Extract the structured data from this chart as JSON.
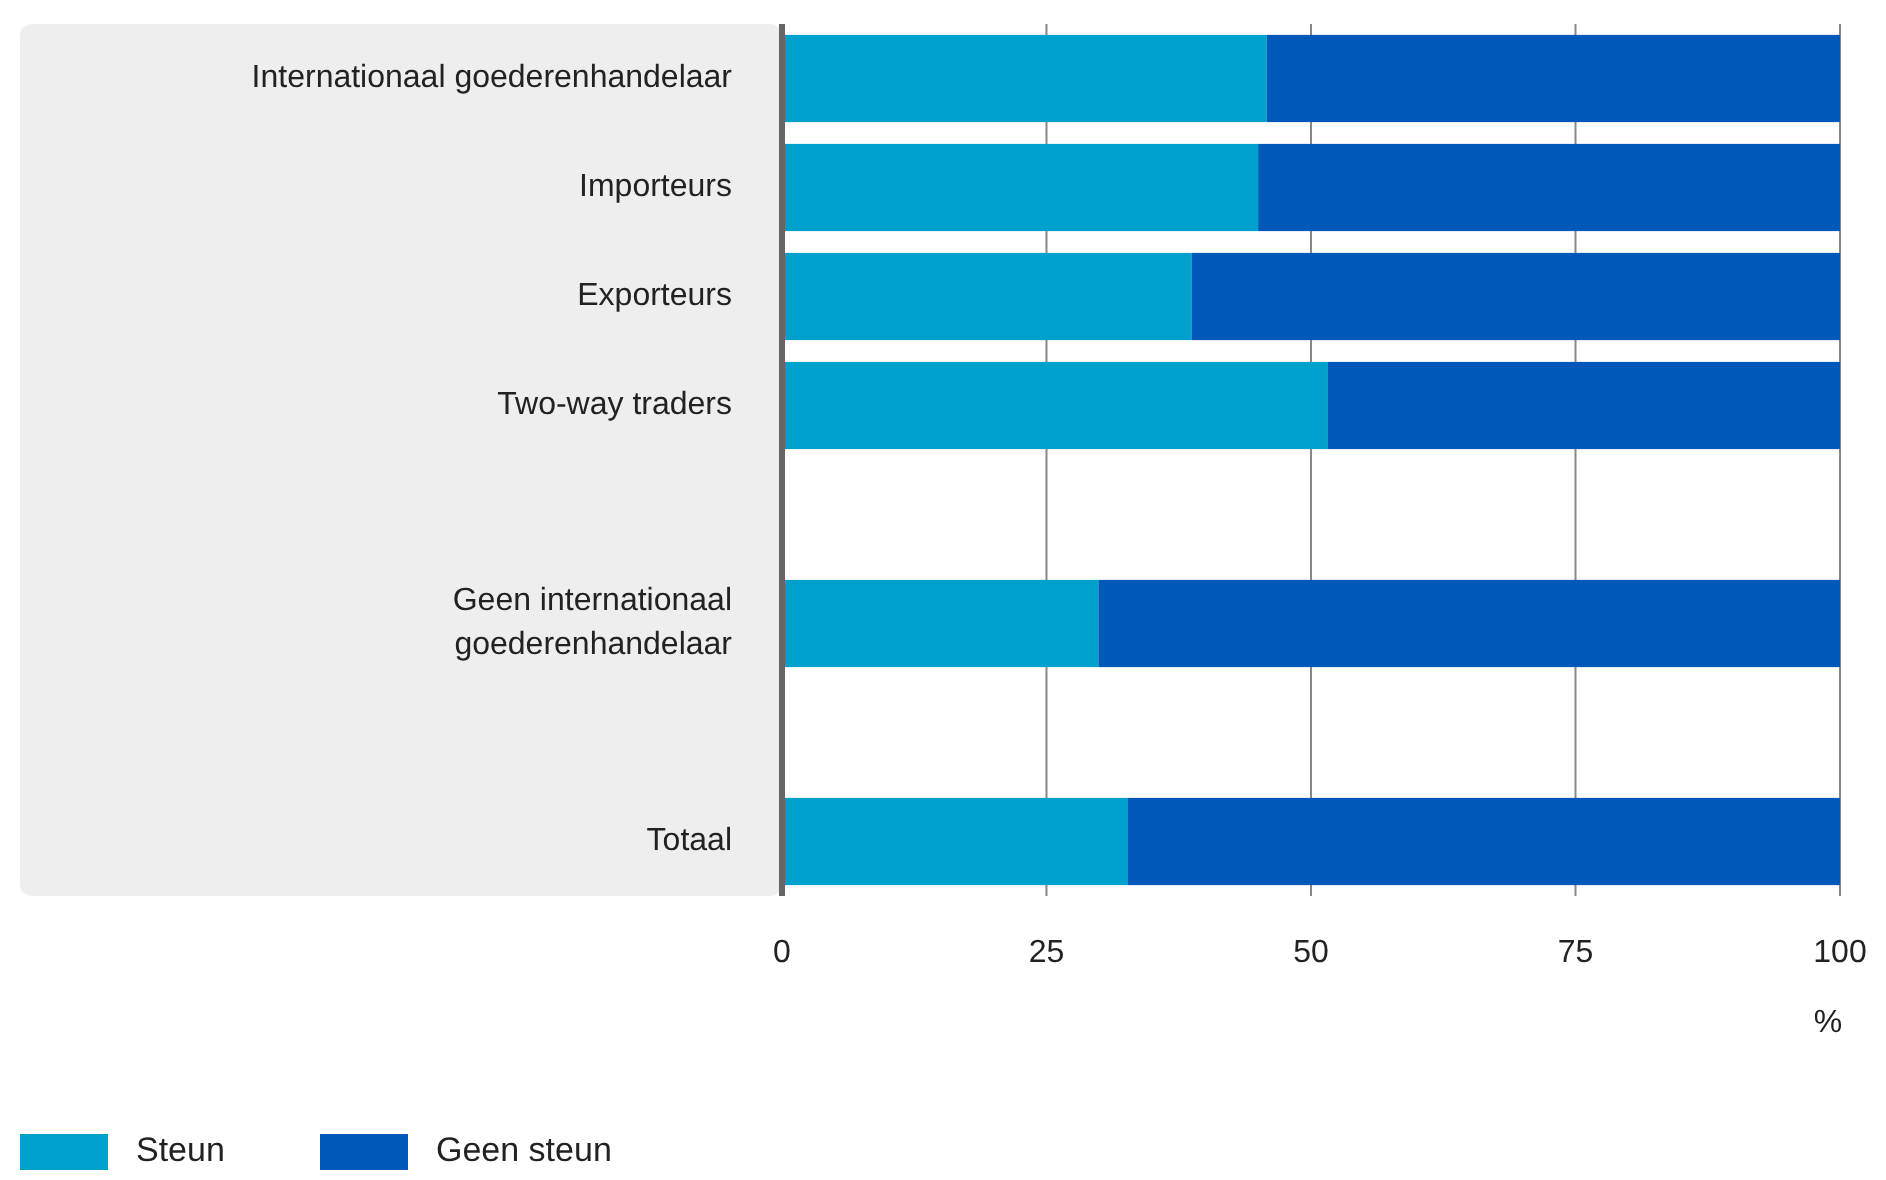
{
  "chart_data": {
    "type": "bar",
    "orientation": "horizontal",
    "stacked": true,
    "categories": [
      "Internationaal goederenhandelaar",
      "Importeurs",
      "Exporteurs",
      "Two-way traders",
      null,
      "Geen internationaal goederenhandelaar",
      null,
      "Totaal"
    ],
    "series": [
      {
        "name": "Steun",
        "color": "#00a1cd",
        "values": [
          45.8,
          45.0,
          38.7,
          51.6,
          null,
          29.9,
          null,
          32.7
        ]
      },
      {
        "name": "Geen steun",
        "color": "#0058b8",
        "values": [
          54.2,
          55.0,
          61.3,
          48.4,
          null,
          70.1,
          null,
          67.3
        ]
      }
    ],
    "xlim": [
      0,
      100
    ],
    "xticks": [
      0,
      25,
      50,
      75,
      100
    ],
    "xlabel": "%",
    "grid": "x",
    "legend": "bottom left"
  }
}
